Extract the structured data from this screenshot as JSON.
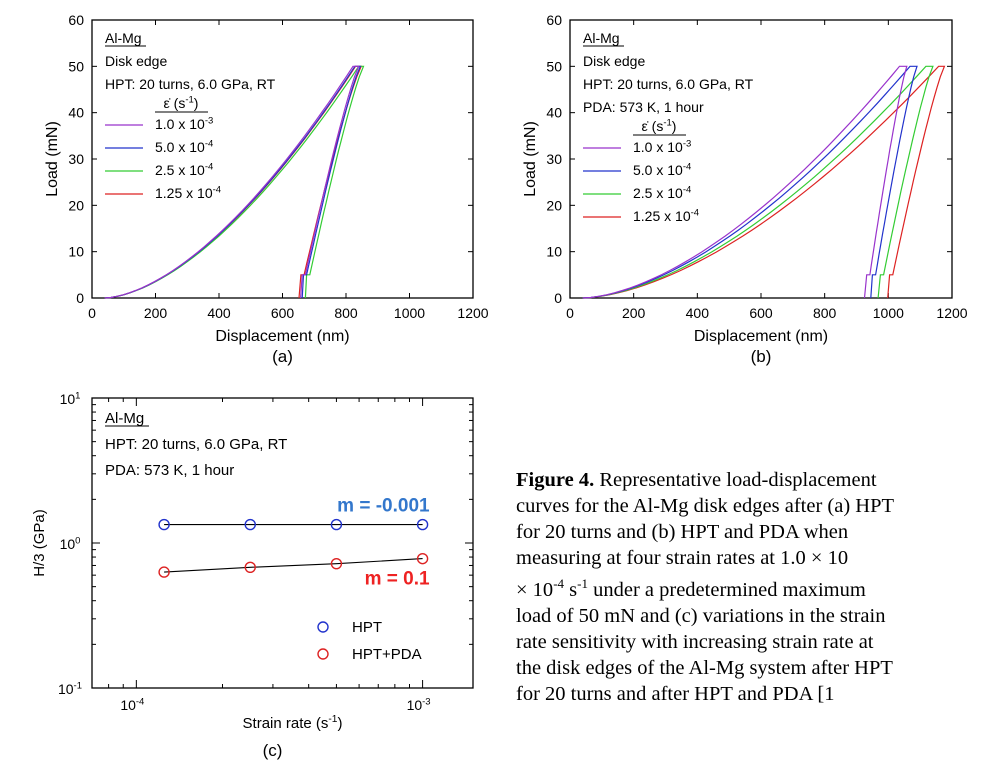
{
  "chart_data": [
    {
      "type": "line",
      "panel_label": "(a)",
      "xlabel": "Displacement (nm)",
      "ylabel": "Load (mN)",
      "xlim": [
        0,
        1200
      ],
      "ylim": [
        0,
        60
      ],
      "xticks": [
        "0",
        "200",
        "400",
        "600",
        "800",
        "1000",
        "1200"
      ],
      "yticks": [
        "0",
        "10",
        "20",
        "30",
        "40",
        "50",
        "60"
      ],
      "annotation": {
        "material": "Al-Mg",
        "lines": [
          "Disk edge",
          "HPT: 20 turns, 6.0 GPa, RT"
        ],
        "legend_title": "ε̇ (s",
        "legend_title_sup": "-1",
        "legend_title_end": ")"
      },
      "series": [
        {
          "name": "1.0 x 10",
          "exp": "-3",
          "color": "#9933cc",
          "x_max": 822,
          "x_end": 840,
          "x_residual": 657,
          "x_kink": 672
        },
        {
          "name": "5.0 x 10",
          "exp": "-4",
          "color": "#2233cc",
          "x_max": 828,
          "x_end": 845,
          "x_residual": 662,
          "x_kink": 676
        },
        {
          "name": "2.5 x 10",
          "exp": "-4",
          "color": "#33cc33",
          "x_max": 840,
          "x_end": 855,
          "x_residual": 672,
          "x_kink": 686
        },
        {
          "name": "1.25 x 10",
          "exp": "-4",
          "color": "#dd2222",
          "x_max": 830,
          "x_end": 848,
          "x_residual": 652,
          "x_kink": 668
        }
      ],
      "peak_load": 50,
      "kink_load": 5
    },
    {
      "type": "line",
      "panel_label": "(b)",
      "xlabel": "Displacement (nm)",
      "ylabel": "Load (mN)",
      "xlim": [
        0,
        1200
      ],
      "ylim": [
        0,
        60
      ],
      "xticks": [
        "0",
        "200",
        "400",
        "600",
        "800",
        "1000",
        "1200"
      ],
      "yticks": [
        "0",
        "10",
        "20",
        "30",
        "40",
        "50",
        "60"
      ],
      "annotation": {
        "material": "Al-Mg",
        "lines": [
          "Disk edge",
          "HPT: 20 turns, 6.0 GPa, RT",
          "PDA: 573 K, 1 hour"
        ],
        "legend_title": "ε̇ (s",
        "legend_title_sup": "-1",
        "legend_title_end": ")"
      },
      "series": [
        {
          "name": "1.0 x 10",
          "exp": "-3",
          "color": "#9933cc",
          "x_max": 1035,
          "x_end": 1058,
          "x_residual": 925,
          "x_kink": 942
        },
        {
          "name": "5.0 x 10",
          "exp": "-4",
          "color": "#2233cc",
          "x_max": 1068,
          "x_end": 1090,
          "x_residual": 945,
          "x_kink": 960
        },
        {
          "name": "2.5 x 10",
          "exp": "-4",
          "color": "#33cc33",
          "x_max": 1118,
          "x_end": 1140,
          "x_residual": 968,
          "x_kink": 985
        },
        {
          "name": "1.25 x 10",
          "exp": "-4",
          "color": "#dd2222",
          "x_max": 1158,
          "x_end": 1176,
          "x_residual": 998,
          "x_kink": 1014
        }
      ],
      "peak_load": 50,
      "kink_load": 5
    },
    {
      "type": "scatter",
      "panel_label": "(c)",
      "xscale": "log",
      "yscale": "log",
      "xlabel": "Strain rate (s",
      "xlabel_sup": "-1",
      "xlabel_end": ")",
      "ylabel": "H/3 (GPa)",
      "xlim": [
        7e-05,
        0.0015
      ],
      "ylim": [
        0.1,
        10
      ],
      "xticks": [
        {
          "value": 0.0001,
          "base": "10",
          "exp": "-4"
        },
        {
          "value": 0.001,
          "base": "10",
          "exp": "-3"
        }
      ],
      "yticks": [
        {
          "value": 0.1,
          "base": "10",
          "exp": "-1"
        },
        {
          "value": 1,
          "base": "10",
          "exp": "0"
        },
        {
          "value": 10,
          "base": "10",
          "exp": "1"
        }
      ],
      "annotation": {
        "material": "Al-Mg",
        "lines": [
          "HPT: 20 turns, 6.0 GPa, RT",
          "PDA: 573 K, 1 hour"
        ]
      },
      "series": [
        {
          "name": "HPT",
          "color": "#2233cc",
          "x": [
            0.000125,
            0.00025,
            0.0005,
            0.001
          ],
          "y": [
            1.34,
            1.34,
            1.34,
            1.34
          ],
          "fit_label": "m = -0.001",
          "fit_color": "#3377cc"
        },
        {
          "name": "HPT+PDA",
          "color": "#dd2222",
          "x": [
            0.000125,
            0.00025,
            0.0005,
            0.001
          ],
          "y": [
            0.63,
            0.68,
            0.72,
            0.78
          ],
          "fit_label": "m = 0.1",
          "fit_color": "#ee2222"
        }
      ],
      "legend_position": "bottom-right"
    }
  ],
  "caption": {
    "bold": "Figure 4.",
    "lines": [
      " Representative load-displacement",
      "curves for the Al-Mg disk edges after (a) HPT",
      "for 20 turns and (b) HPT and PDA when",
      "measuring at four strain rates at 1.0 × 10",
      "× 10",
      "load of 50 mN and (c) variations in the strain",
      "rate sensitivity with increasing strain rate at",
      "the disk edges of the Al-Mg system after HPT",
      "for 20 turns and after HPT and PDA [1"
    ],
    "line5_sup": "-4",
    "line5_mid": " s",
    "line5_sup2": "-1",
    "line5_end": " under a predetermined maximum"
  }
}
